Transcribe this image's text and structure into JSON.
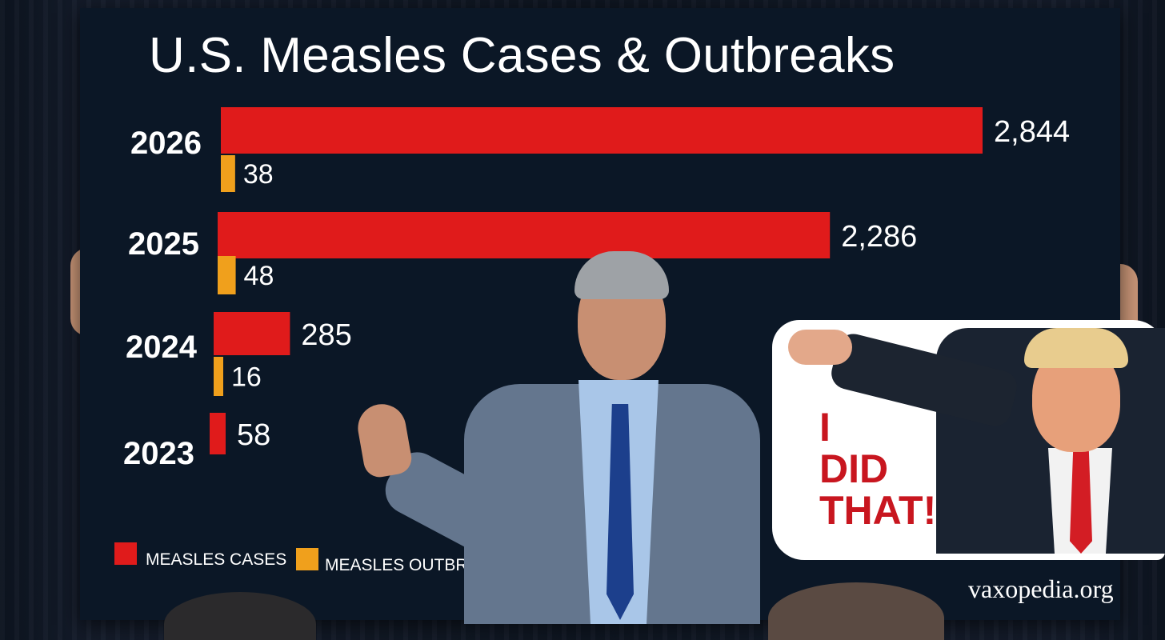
{
  "chart_data": {
    "type": "bar",
    "orientation": "horizontal",
    "title": "U.S. Measles Cases & Outbreaks",
    "categories": [
      "2026",
      "2025",
      "2024",
      "2023"
    ],
    "series": [
      {
        "name": "MEASLES CASES",
        "values": [
          2844,
          2286,
          285,
          58
        ],
        "labels": [
          "2,844",
          "2,286",
          "285",
          "58"
        ],
        "color": "#e01b1b"
      },
      {
        "name": "MEASLES OUTBREAKS",
        "values": [
          38,
          48,
          16,
          null
        ],
        "labels": [
          "38",
          "48",
          "16",
          ""
        ],
        "color": "#f0a01c"
      }
    ],
    "grid": false,
    "legend_position": "bottom-left"
  },
  "sticker": {
    "lines": [
      "I",
      "DID",
      "THAT!"
    ],
    "text_color": "#c8161f"
  },
  "watermark": "vaxopedia.org",
  "colors": {
    "board_bg": "#0b1726",
    "text": "#ffffff"
  }
}
